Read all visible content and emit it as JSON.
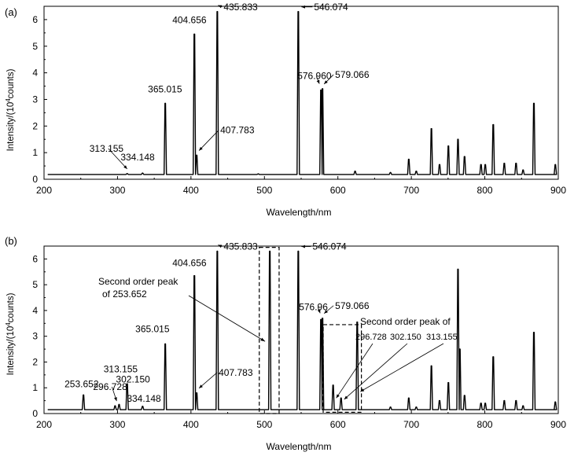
{
  "colors": {
    "line": "#000000",
    "axis": "#000000",
    "background": "#ffffff"
  },
  "chart_data": [
    {
      "type": "line",
      "panel_label": "(a)",
      "xlabel": "Wavelength/nm",
      "ylabel": {
        "main": "Intensity/(10",
        "sup": "4",
        "rest": "counts)"
      },
      "xlim": [
        200,
        900
      ],
      "ylim": [
        0,
        6.5
      ],
      "xticks": [
        200,
        300,
        400,
        500,
        600,
        700,
        800,
        900
      ],
      "yticks": [
        0,
        1,
        2,
        3,
        4,
        5,
        6
      ],
      "grid": false,
      "legend": "none",
      "baseline": 0.18,
      "peaks": [
        {
          "x": 313.155,
          "y": 0.21
        },
        {
          "x": 334.148,
          "y": 0.23
        },
        {
          "x": 365.015,
          "y": 2.85
        },
        {
          "x": 404.656,
          "y": 5.45
        },
        {
          "x": 407.783,
          "y": 0.9
        },
        {
          "x": 435.833,
          "y": 6.3
        },
        {
          "x": 491.6,
          "y": 0.2
        },
        {
          "x": 546.074,
          "y": 6.3
        },
        {
          "x": 576.96,
          "y": 3.35
        },
        {
          "x": 579.066,
          "y": 3.4
        },
        {
          "x": 623.4,
          "y": 0.3
        },
        {
          "x": 671.6,
          "y": 0.25
        },
        {
          "x": 696.5,
          "y": 0.75
        },
        {
          "x": 706.7,
          "y": 0.3
        },
        {
          "x": 727.3,
          "y": 1.9
        },
        {
          "x": 738.4,
          "y": 0.55
        },
        {
          "x": 750.4,
          "y": 1.25
        },
        {
          "x": 763.5,
          "y": 1.5
        },
        {
          "x": 772.4,
          "y": 0.85
        },
        {
          "x": 794.8,
          "y": 0.55
        },
        {
          "x": 800.6,
          "y": 0.55
        },
        {
          "x": 811.5,
          "y": 2.05
        },
        {
          "x": 826.5,
          "y": 0.6
        },
        {
          "x": 842.5,
          "y": 0.6
        },
        {
          "x": 852.1,
          "y": 0.35
        },
        {
          "x": 866.8,
          "y": 2.85
        },
        {
          "x": 896.0,
          "y": 0.55
        }
      ],
      "annotations": [
        {
          "text": "313.155",
          "x": 313.155,
          "y": 0.21,
          "arrow": true
        },
        {
          "text": "334.148",
          "x": 334.148,
          "y": 0.23,
          "arrow": false
        },
        {
          "text": "365.015",
          "x": 365.015,
          "y": 2.85,
          "arrow": false
        },
        {
          "text": "404.656",
          "x": 404.656,
          "y": 5.45,
          "arrow": false
        },
        {
          "text": "407.783",
          "x": 407.783,
          "y": 0.9,
          "arrow": true
        },
        {
          "text": "435.833",
          "x": 435.833,
          "y": 6.3,
          "arrow": true
        },
        {
          "text": "546.074",
          "x": 546.074,
          "y": 6.3,
          "arrow": true
        },
        {
          "text": "576.960",
          "x": 576.96,
          "y": 3.35,
          "arrow": true
        },
        {
          "text": "579.066",
          "x": 579.066,
          "y": 3.4,
          "arrow": true
        }
      ]
    },
    {
      "type": "line",
      "panel_label": "(b)",
      "xlabel": "Wavelength/nm",
      "ylabel": {
        "main": "Intensity/(10",
        "sup": "4",
        "rest": "counts)"
      },
      "xlim": [
        200,
        900
      ],
      "ylim": [
        0,
        6.5
      ],
      "xticks": [
        200,
        300,
        400,
        500,
        600,
        700,
        800,
        900
      ],
      "yticks": [
        0,
        1,
        2,
        3,
        4,
        5,
        6
      ],
      "grid": false,
      "legend": "none",
      "baseline": 0.15,
      "peaks": [
        {
          "x": 253.652,
          "y": 0.72
        },
        {
          "x": 296.728,
          "y": 0.3
        },
        {
          "x": 302.15,
          "y": 0.35
        },
        {
          "x": 313.155,
          "y": 1.15
        },
        {
          "x": 334.148,
          "y": 0.28
        },
        {
          "x": 365.015,
          "y": 2.7
        },
        {
          "x": 404.656,
          "y": 5.35
        },
        {
          "x": 407.783,
          "y": 0.8
        },
        {
          "x": 435.833,
          "y": 6.3
        },
        {
          "x": 507.3,
          "y": 6.3
        },
        {
          "x": 546.074,
          "y": 6.3
        },
        {
          "x": 576.96,
          "y": 3.65
        },
        {
          "x": 579.066,
          "y": 3.7
        },
        {
          "x": 593.5,
          "y": 1.1
        },
        {
          "x": 604.3,
          "y": 0.6
        },
        {
          "x": 626.3,
          "y": 3.55
        },
        {
          "x": 671.6,
          "y": 0.25
        },
        {
          "x": 696.5,
          "y": 0.6
        },
        {
          "x": 706.7,
          "y": 0.25
        },
        {
          "x": 727.3,
          "y": 1.85
        },
        {
          "x": 738.4,
          "y": 0.5
        },
        {
          "x": 750.4,
          "y": 1.2
        },
        {
          "x": 763.5,
          "y": 5.6
        },
        {
          "x": 766.0,
          "y": 2.5
        },
        {
          "x": 772.4,
          "y": 0.7
        },
        {
          "x": 794.8,
          "y": 0.4
        },
        {
          "x": 800.6,
          "y": 0.4
        },
        {
          "x": 811.5,
          "y": 2.2
        },
        {
          "x": 826.5,
          "y": 0.5
        },
        {
          "x": 842.5,
          "y": 0.5
        },
        {
          "x": 852.1,
          "y": 0.3
        },
        {
          "x": 866.8,
          "y": 3.15
        },
        {
          "x": 896.0,
          "y": 0.45
        }
      ],
      "annotations": [
        {
          "text": "253.652",
          "x": 253.652,
          "y": 0.72,
          "arrow": false
        },
        {
          "text": "296.728",
          "x": 296.728,
          "y": 0.3,
          "arrow": true
        },
        {
          "text": "313.155",
          "x": 313.155,
          "y": 1.15,
          "arrow": false
        },
        {
          "text": "302.150",
          "x": 302.15,
          "y": 0.35,
          "arrow": false
        },
        {
          "text": "334.148",
          "x": 334.148,
          "y": 0.28,
          "arrow": false
        },
        {
          "text": "365.015",
          "x": 365.015,
          "y": 2.7,
          "arrow": false
        },
        {
          "text": "404.656",
          "x": 404.656,
          "y": 5.35,
          "arrow": false
        },
        {
          "text": "407.783",
          "x": 407.783,
          "y": 0.8,
          "arrow": true
        },
        {
          "text": "435.833",
          "x": 435.833,
          "y": 6.3,
          "arrow": true
        },
        {
          "text": "546.074",
          "x": 546.074,
          "y": 6.3,
          "arrow": true
        },
        {
          "text": "576.96",
          "x": 576.96,
          "y": 3.65,
          "arrow": true
        },
        {
          "text": "579.066",
          "x": 579.066,
          "y": 3.7,
          "arrow": true
        }
      ],
      "callouts": [
        {
          "lines": [
            "Second order peak",
            "of 253.652"
          ],
          "target_x": 507.3,
          "target_y": 2.8
        },
        {
          "lines": [
            "Second order peak of"
          ],
          "sub_labels": [
            {
              "text": "296.728",
              "target_x": 593.5,
              "target_y": 0.6
            },
            {
              "text": "302.150",
              "target_x": 604.3,
              "target_y": 0.55
            },
            {
              "text": "313.155",
              "target_x": 626.3,
              "target_y": 0.85
            }
          ]
        }
      ],
      "boxes": [
        {
          "x0": 493,
          "x1": 520,
          "y0": 0.0,
          "y1": 6.45
        },
        {
          "x0": 580,
          "x1": 632,
          "y0": 0.05,
          "y1": 3.45
        }
      ]
    }
  ]
}
